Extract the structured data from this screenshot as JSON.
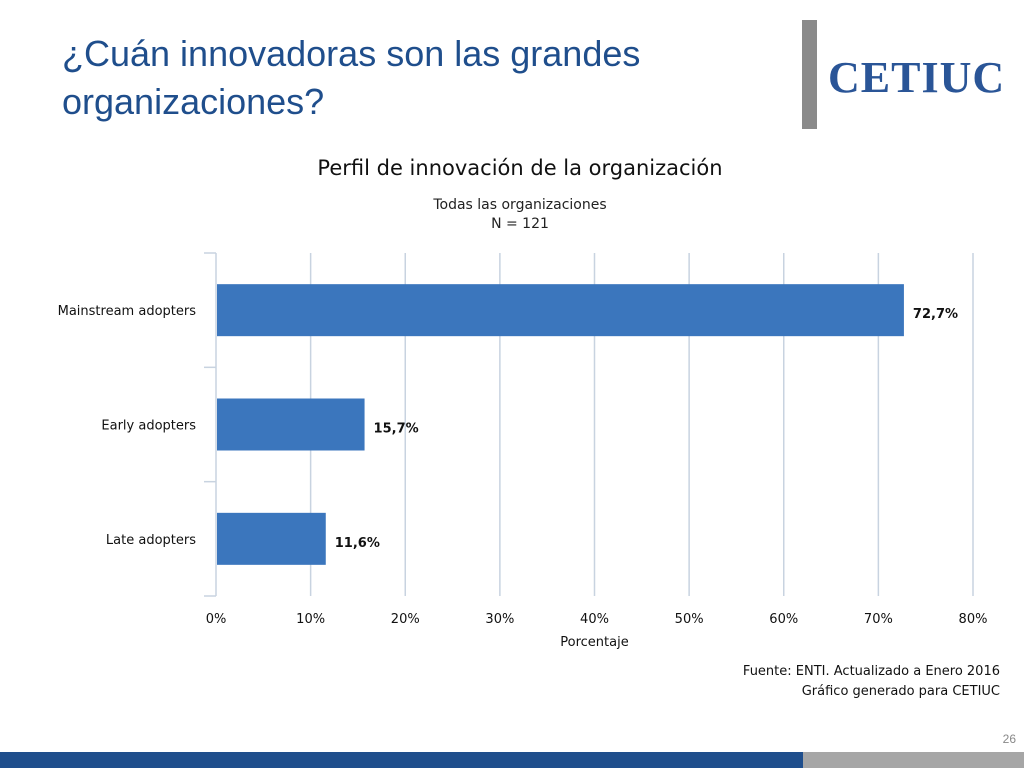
{
  "slide": {
    "title": "¿Cuán innovadoras son las grandes organizaciones?",
    "logo_text": "CETIUC",
    "page_number": "26",
    "source_line1": "Fuente: ENTI. Actualizado a Enero 2016",
    "source_line2": "Gráfico generado para CETIUC"
  },
  "colors": {
    "title": "#1f4e8c",
    "bar": "#3b76bd",
    "footer_blue": "#1f4e8c",
    "footer_gray": "#a6a6a6",
    "logo": "#2a5597"
  },
  "chart_data": {
    "type": "bar",
    "orientation": "horizontal",
    "title": "Perfil de innovación de la organización",
    "subtitle": [
      "Todas las organizaciones",
      "N = 121"
    ],
    "xlabel": "Porcentaje",
    "ylabel": "",
    "categories": [
      "Mainstream adopters",
      "Early adopters",
      "Late adopters"
    ],
    "values": [
      72.7,
      15.7,
      11.6
    ],
    "value_labels": [
      "72,7%",
      "15,7%",
      "11,6%"
    ],
    "xlim": [
      0,
      80
    ],
    "xticks": [
      0,
      10,
      20,
      30,
      40,
      50,
      60,
      70,
      80
    ],
    "xtick_labels": [
      "0%",
      "10%",
      "20%",
      "30%",
      "40%",
      "50%",
      "60%",
      "70%",
      "80%"
    ],
    "grid": true,
    "legend": "none"
  }
}
